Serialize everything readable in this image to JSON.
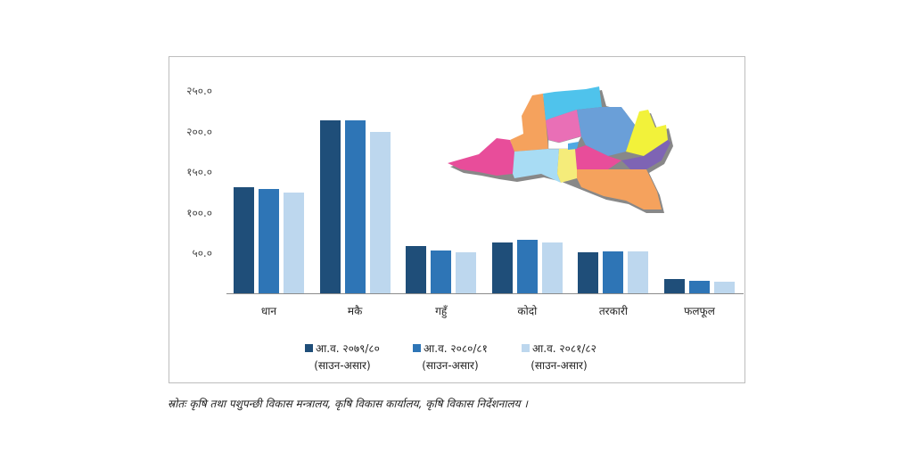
{
  "chart_data": {
    "type": "bar",
    "title": "",
    "xlabel": "",
    "ylabel": "",
    "ylim": [
      0,
      250
    ],
    "yticks": [
      "५०.०",
      "१००.०",
      "१५०.०",
      "२००.०",
      "२५०.०"
    ],
    "ytick_values": [
      50,
      100,
      150,
      200,
      250
    ],
    "grid": false,
    "legend_position": "bottom",
    "categories": [
      "धान",
      "मकै",
      "गहुँ",
      "कोदो",
      "तरकारी",
      "फलफूल"
    ],
    "series": [
      {
        "name": "आ.व. २०७९/८० (साउन-असार)",
        "color": "#1f4e79",
        "values": [
          130,
          213,
          58.5,
          62,
          50,
          17.5
        ]
      },
      {
        "name": "आ.व. २०८०/८१ (साउन-असार)",
        "color": "#2e75b6",
        "values": [
          128,
          213,
          52.5,
          66,
          51,
          15.5
        ]
      },
      {
        "name": "आ.व. २०८१/८२ (साउन-असार)",
        "color": "#bdd7ee",
        "values": [
          124,
          199,
          50,
          63,
          51,
          14.5
        ]
      }
    ]
  },
  "legend": [
    {
      "line1": "आ.व. २०७९/८०",
      "line2": "(साउन-असार)",
      "color": "#1f4e79"
    },
    {
      "line1": "आ.व. २०८०/८१",
      "line2": "(साउन-असार)",
      "color": "#2e75b6"
    },
    {
      "line1": "आ.व. २०८१/८२",
      "line2": "(साउन-असार)",
      "color": "#bdd7ee"
    }
  ],
  "source_note": "स्रोतः कृषि तथा पशुपन्छी विकास मन्त्रालय, कृषि विकास कार्यालय, कृषि विकास निर्देशनालय ।",
  "map": {
    "region_colors": [
      "#e84d9a",
      "#f5a25d",
      "#4fc3ec",
      "#e96fb6",
      "#6a9fd8",
      "#a8dcf4",
      "#f2f23a",
      "#f5a25d",
      "#7e64b4",
      "#e84d9a",
      "#ffffff",
      "#f5ec7a",
      "#4fa9e3"
    ]
  }
}
